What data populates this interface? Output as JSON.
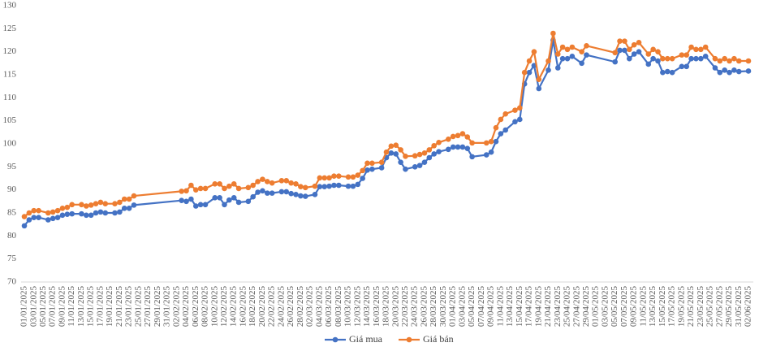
{
  "chart_data": {
    "type": "line",
    "x": [
      "01/01/2025",
      "02/01/2025",
      "03/01/2025",
      "04/01/2025",
      "06/01/2025",
      "07/01/2025",
      "08/01/2025",
      "09/01/2025",
      "10/01/2025",
      "11/01/2025",
      "13/01/2025",
      "14/01/2025",
      "15/01/2025",
      "16/01/2025",
      "17/01/2025",
      "18/01/2025",
      "20/01/2025",
      "21/01/2025",
      "22/01/2025",
      "23/01/2025",
      "24/01/2025",
      "03/02/2025",
      "04/02/2025",
      "05/02/2025",
      "06/02/2025",
      "07/02/2025",
      "08/02/2025",
      "10/02/2025",
      "11/02/2025",
      "12/02/2025",
      "13/02/2025",
      "14/02/2025",
      "15/02/2025",
      "17/02/2025",
      "18/02/2025",
      "19/02/2025",
      "20/02/2025",
      "21/02/2025",
      "22/02/2025",
      "24/02/2025",
      "25/02/2025",
      "26/02/2025",
      "27/02/2025",
      "28/02/2025",
      "01/03/2025",
      "03/03/2025",
      "04/03/2025",
      "05/03/2025",
      "06/03/2025",
      "07/03/2025",
      "08/03/2025",
      "10/03/2025",
      "11/03/2025",
      "12/03/2025",
      "13/03/2025",
      "14/03/2025",
      "15/03/2025",
      "17/03/2025",
      "18/03/2025",
      "19/03/2025",
      "20/03/2025",
      "21/03/2025",
      "22/03/2025",
      "24/03/2025",
      "25/03/2025",
      "26/03/2025",
      "27/03/2025",
      "28/03/2025",
      "29/03/2025",
      "31/03/2025",
      "01/04/2025",
      "02/04/2025",
      "03/04/2025",
      "04/04/2025",
      "05/04/2025",
      "08/04/2025",
      "09/04/2025",
      "10/04/2025",
      "11/04/2025",
      "12/04/2025",
      "14/04/2025",
      "15/04/2025",
      "16/04/2025",
      "17/04/2025",
      "18/04/2025",
      "19/04/2025",
      "21/04/2025",
      "22/04/2025",
      "23/04/2025",
      "24/04/2025",
      "25/04/2025",
      "26/04/2025",
      "28/04/2025",
      "29/04/2025",
      "05/05/2025",
      "06/05/2025",
      "07/05/2025",
      "08/05/2025",
      "09/05/2025",
      "10/05/2025",
      "12/05/2025",
      "13/05/2025",
      "14/05/2025",
      "15/05/2025",
      "16/05/2025",
      "17/05/2025",
      "19/05/2025",
      "20/05/2025",
      "21/05/2025",
      "22/05/2025",
      "23/05/2025",
      "24/05/2025",
      "26/05/2025",
      "27/05/2025",
      "28/05/2025",
      "29/05/2025",
      "30/05/2025",
      "31/05/2025",
      "02/06/2025"
    ],
    "series": [
      {
        "name": "Giá mua",
        "color": "#4472c4",
        "values": [
          82.2,
          83.5,
          84,
          84,
          83.5,
          83.8,
          84,
          84.5,
          84.7,
          84.8,
          84.8,
          84.5,
          84.5,
          85,
          85.2,
          85,
          85,
          85.2,
          86,
          86,
          86.7,
          87.7,
          87.5,
          88,
          86.5,
          86.8,
          86.8,
          88.3,
          88.3,
          86.8,
          87.8,
          88.3,
          87.3,
          87.5,
          88.5,
          89.5,
          89.8,
          89.3,
          89.3,
          89.6,
          89.6,
          89.2,
          89,
          88.7,
          88.6,
          89,
          90.7,
          90.7,
          90.8,
          91,
          91,
          90.8,
          90.8,
          91.2,
          92.5,
          94.3,
          94.5,
          94.8,
          97,
          98,
          97.8,
          96,
          94.5,
          95,
          95.3,
          96,
          97,
          97.8,
          98.3,
          98.8,
          99.3,
          99.3,
          99.3,
          99,
          97.2,
          97.6,
          98.2,
          100.5,
          102.2,
          103,
          104.8,
          105.3,
          113,
          115.5,
          117,
          112,
          116,
          122.5,
          116.5,
          118.5,
          118.5,
          119,
          117.5,
          119.3,
          117.8,
          120.3,
          120.3,
          118.5,
          119.5,
          120,
          117.3,
          118.5,
          118,
          115.5,
          115.7,
          115.5,
          116.8,
          116.8,
          118.5,
          118.5,
          118.5,
          119,
          116.5,
          115.5,
          116,
          115.5,
          116,
          115.7,
          115.8
        ]
      },
      {
        "name": "Giá bán",
        "color": "#ed7d31",
        "values": [
          84.2,
          85,
          85.5,
          85.5,
          85,
          85.2,
          85.5,
          86,
          86.2,
          86.8,
          86.8,
          86.5,
          86.7,
          87,
          87.3,
          87,
          87,
          87.3,
          88,
          88,
          88.7,
          89.7,
          89.8,
          91,
          90,
          90.3,
          90.3,
          91.3,
          91.3,
          90.3,
          90.8,
          91.3,
          90.3,
          90.5,
          91,
          91.8,
          92.3,
          91.8,
          91.5,
          92,
          92,
          91.5,
          91.3,
          90.7,
          90.5,
          90.8,
          92.6,
          92.6,
          92.6,
          93,
          93,
          92.8,
          92.8,
          93.2,
          94.2,
          95.8,
          95.8,
          96,
          98.2,
          99.5,
          99.7,
          98.7,
          97.3,
          97.4,
          97.7,
          98,
          98.7,
          99.6,
          100.3,
          101,
          101.6,
          101.8,
          102.2,
          101.5,
          100.2,
          100.2,
          100.5,
          103.5,
          105.3,
          106.5,
          107.3,
          107.8,
          115.5,
          118,
          120,
          114,
          118,
          124,
          119.5,
          121,
          120.5,
          121,
          120,
          121.3,
          119.8,
          122.3,
          122.3,
          120.5,
          121.5,
          122,
          119.5,
          120.5,
          120,
          118.5,
          118.5,
          118.5,
          119.3,
          119.3,
          121,
          120.5,
          120.5,
          121,
          118.5,
          118,
          118.5,
          118,
          118.5,
          118,
          118
        ]
      }
    ],
    "xticks": [
      "01/01/2025",
      "03/01/2025",
      "05/01/2025",
      "07/01/2025",
      "09/01/2025",
      "11/01/2025",
      "13/01/2025",
      "15/01/2025",
      "17/01/2025",
      "19/01/2025",
      "21/01/2025",
      "23/01/2025",
      "25/01/2025",
      "27/01/2025",
      "29/01/2025",
      "31/01/2025",
      "02/02/2025",
      "04/02/2025",
      "06/02/2025",
      "08/02/2025",
      "10/02/2025",
      "12/02/2025",
      "14/02/2025",
      "16/02/2025",
      "18/02/2025",
      "20/02/2025",
      "22/02/2025",
      "24/02/2025",
      "26/02/2025",
      "28/02/2025",
      "02/03/2025",
      "04/03/2025",
      "06/03/2025",
      "08/03/2025",
      "10/03/2025",
      "12/03/2025",
      "14/03/2025",
      "16/03/2025",
      "18/03/2025",
      "20/03/2025",
      "22/03/2025",
      "24/03/2025",
      "26/03/2025",
      "28/03/2025",
      "30/03/2025",
      "01/04/2025",
      "03/04/2025",
      "05/04/2025",
      "07/04/2025",
      "09/04/2025",
      "11/04/2025",
      "13/04/2025",
      "15/04/2025",
      "17/04/2025",
      "19/04/2025",
      "21/04/2025",
      "23/04/2025",
      "25/04/2025",
      "27/04/2025",
      "29/04/2025",
      "01/05/2025",
      "03/05/2025",
      "05/05/2025",
      "07/05/2025",
      "09/05/2025",
      "11/05/2025",
      "13/05/2025",
      "15/05/2025",
      "17/05/2025",
      "19/05/2025",
      "21/05/2025",
      "23/05/2025",
      "25/05/2025",
      "27/05/2025",
      "29/05/2025",
      "31/05/2025",
      "02/06/2025"
    ],
    "ylim": [
      70,
      130
    ],
    "yticks": [
      70,
      75,
      80,
      85,
      90,
      95,
      100,
      105,
      110,
      115,
      120,
      125,
      130
    ],
    "grid": false,
    "legend": "bottom"
  }
}
